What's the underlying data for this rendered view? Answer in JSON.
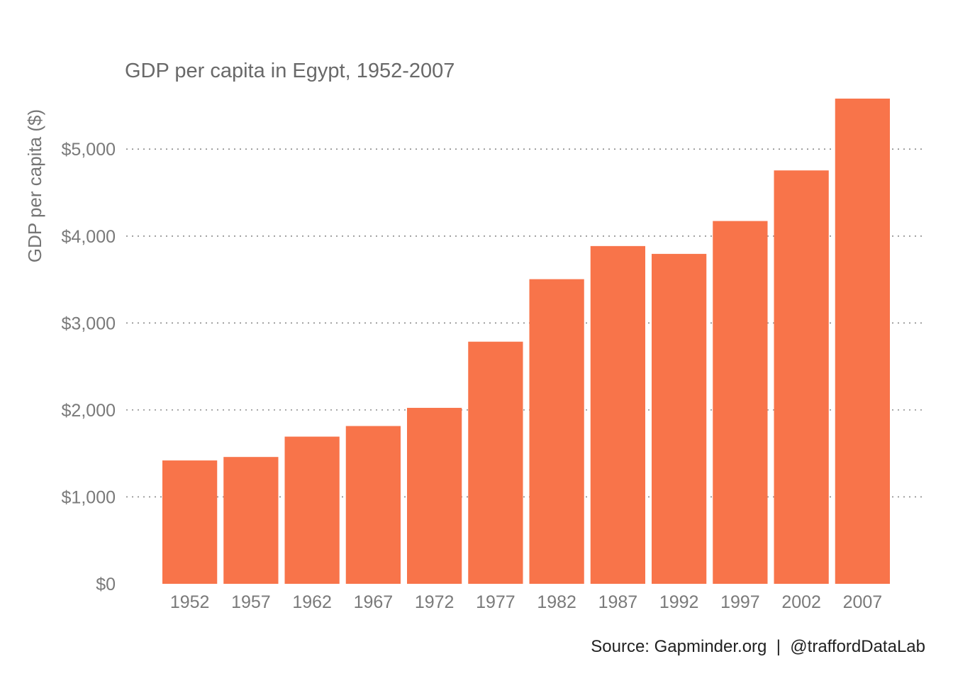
{
  "chart_data": {
    "type": "bar",
    "title": "GDP per capita in Egypt, 1952-2007",
    "xlabel": "",
    "ylabel": "GDP per capita ($)",
    "categories": [
      "1952",
      "1957",
      "1962",
      "1967",
      "1972",
      "1977",
      "1982",
      "1987",
      "1992",
      "1997",
      "2002",
      "2007"
    ],
    "values": [
      1419,
      1459,
      1693,
      1815,
      2024,
      2785,
      3504,
      3885,
      3795,
      4173,
      4755,
      5581
    ],
    "ylim": [
      0,
      5581
    ],
    "yticks": [
      0,
      1000,
      2000,
      3000,
      4000,
      5000
    ],
    "ytick_labels": [
      "$0",
      "$1,000",
      "$2,000",
      "$3,000",
      "$4,000",
      "$5,000"
    ],
    "grid": "horizontal dotted",
    "legend": "none",
    "bar_color": "#F8744A",
    "caption": "Source: Gapminder.org  |  @traffordDataLab"
  }
}
